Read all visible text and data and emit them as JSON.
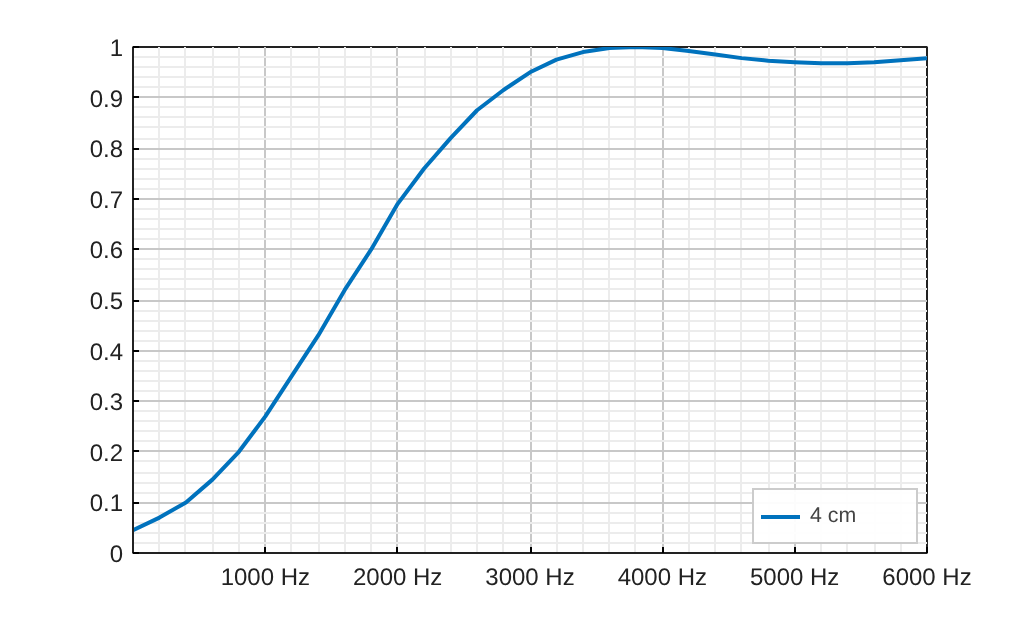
{
  "chart_data": {
    "type": "line",
    "x": [
      0,
      200,
      400,
      600,
      800,
      1000,
      1200,
      1400,
      1600,
      1800,
      2000,
      2200,
      2400,
      2600,
      2800,
      3000,
      3200,
      3400,
      3600,
      3800,
      4000,
      4200,
      4400,
      4600,
      4800,
      5000,
      5200,
      5400,
      5600,
      5800,
      6000
    ],
    "series": [
      {
        "name": "4 cm",
        "color": "#0072bd",
        "values": [
          0.045,
          0.07,
          0.1,
          0.145,
          0.2,
          0.27,
          0.35,
          0.43,
          0.52,
          0.6,
          0.69,
          0.76,
          0.82,
          0.875,
          0.915,
          0.95,
          0.975,
          0.99,
          0.998,
          1.0,
          0.998,
          0.992,
          0.985,
          0.978,
          0.973,
          0.97,
          0.968,
          0.968,
          0.97,
          0.974,
          0.978
        ]
      }
    ],
    "xlim": [
      0,
      6000
    ],
    "ylim": [
      0,
      1
    ],
    "xticks": [
      {
        "value": 1000,
        "label": "1000 Hz"
      },
      {
        "value": 2000,
        "label": "2000 Hz"
      },
      {
        "value": 3000,
        "label": "3000 Hz"
      },
      {
        "value": 4000,
        "label": "4000 Hz"
      },
      {
        "value": 5000,
        "label": "5000 Hz"
      },
      {
        "value": 6000,
        "label": "6000 Hz"
      }
    ],
    "yticks": [
      0,
      0.1,
      0.2,
      0.3,
      0.4,
      0.5,
      0.6,
      0.7,
      0.8,
      0.9,
      1
    ],
    "grid": true,
    "legend": "bottom right",
    "marker": "none",
    "line_style": "solid"
  }
}
